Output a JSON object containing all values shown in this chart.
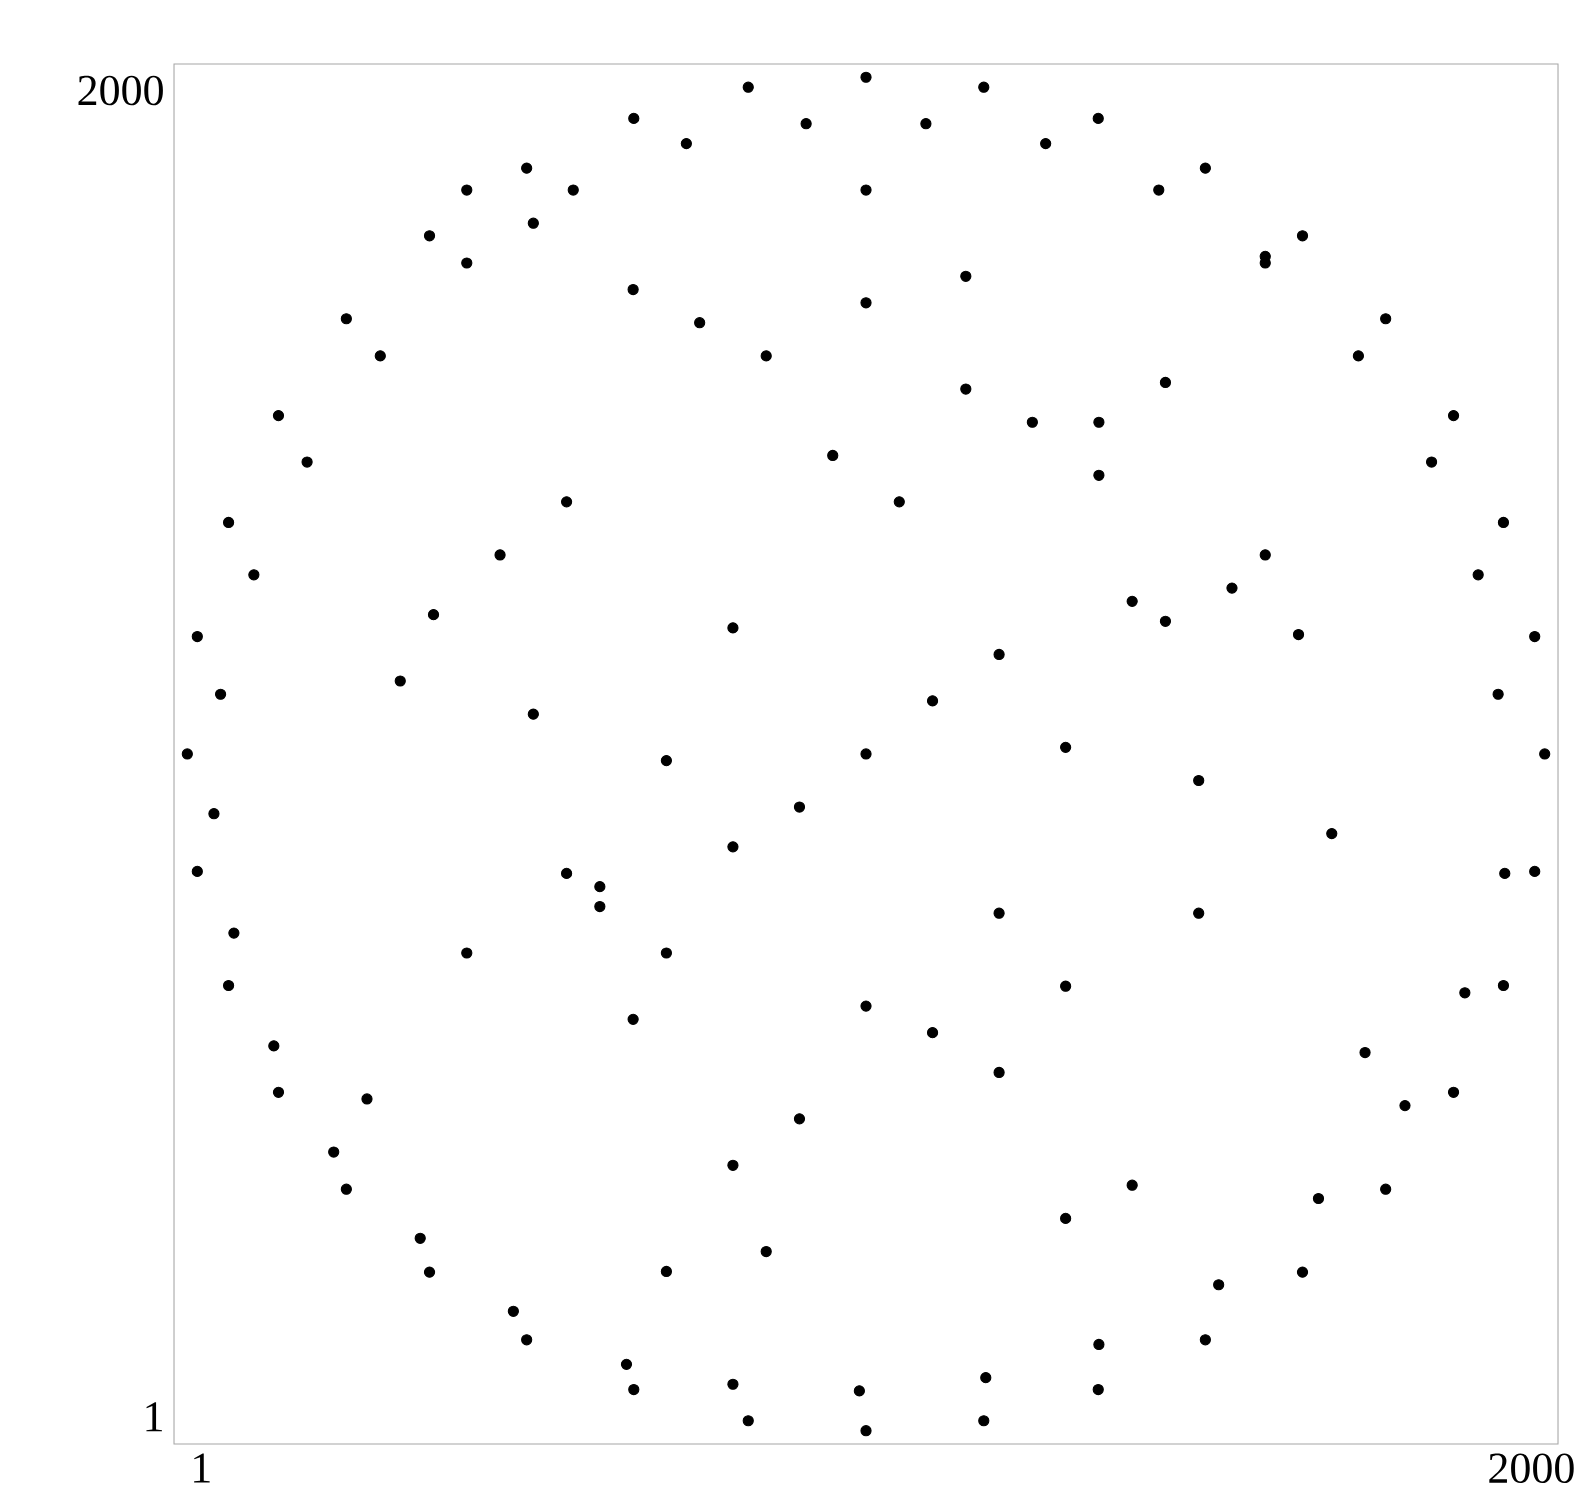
{
  "chart_data": {
    "type": "scatter",
    "marker": "circle",
    "grid": false,
    "xlim": [
      -40,
      2040
    ],
    "ylim": [
      -40,
      2040
    ],
    "xticks": [
      1,
      2000
    ],
    "yticks": [
      1,
      2000
    ],
    "series": [
      {
        "color": "#000000",
        "x": [
          2020,
          2005,
          1958,
          1883,
          1781,
          1656,
          1510,
          1349,
          1177,
          1000,
          823,
          651,
          490,
          344,
          219,
          117,
          42,
          -5,
          -20,
          -5,
          42,
          117,
          219,
          344,
          490,
          651,
          823,
          1000,
          1177,
          1349,
          1510,
          1656,
          1781,
          1883,
          1958,
          2005,
          1950,
          1920,
          1850,
          1740,
          1600,
          1440,
          1270,
          1090,
          910,
          730,
          560,
          400,
          270,
          160,
          80,
          30,
          20,
          50,
          110,
          200,
          330,
          470,
          640,
          800,
          990,
          1180,
          1350,
          1530,
          1680,
          1810,
          1900,
          1960,
          1000,
          1100,
          900,
          1200,
          800,
          1300,
          700,
          1400,
          600,
          1500,
          500,
          1600,
          400,
          1700,
          300,
          1050,
          950,
          1150,
          850,
          1250,
          750,
          1350,
          650,
          1450,
          550,
          1550,
          450,
          1650,
          350,
          1750,
          250,
          1000,
          1100,
          900,
          1200,
          800,
          1300,
          700,
          1400,
          600,
          1500,
          500,
          1600,
          400,
          1000,
          1150,
          850,
          1300,
          700,
          1450,
          550,
          1000,
          1200,
          800,
          1350,
          650
        ],
        "values": [
          1000,
          1177,
          1349,
          1510,
          1656,
          1781,
          1883,
          1958,
          2005,
          2020,
          2005,
          1958,
          1883,
          1781,
          1656,
          1510,
          1349,
          1177,
          1000,
          823,
          651,
          490,
          344,
          219,
          117,
          42,
          -5,
          -20,
          -5,
          42,
          117,
          219,
          344,
          490,
          651,
          823,
          1090,
          1270,
          1440,
          1600,
          1740,
          1850,
          1920,
          1950,
          1950,
          1920,
          1850,
          1740,
          1600,
          1440,
          1270,
          1090,
          910,
          730,
          560,
          400,
          270,
          160,
          80,
          50,
          40,
          60,
          110,
          200,
          330,
          470,
          640,
          820,
          1000,
          1080,
          920,
          1150,
          860,
          1010,
          990,
          1230,
          770,
          960,
          1060,
          1300,
          700,
          880,
          1110,
          1380,
          1450,
          1550,
          1600,
          1500,
          1650,
          1420,
          1700,
          1560,
          1380,
          1250,
          1300,
          1180,
          1210,
          550,
          480,
          620,
          580,
          450,
          520,
          380,
          650,
          700,
          350,
          800,
          760,
          1800,
          1750,
          1850,
          1680,
          1720,
          250,
          300,
          220,
          1200,
          820,
          1850,
          760,
          1190,
          1500,
          600
        ]
      }
    ]
  }
}
